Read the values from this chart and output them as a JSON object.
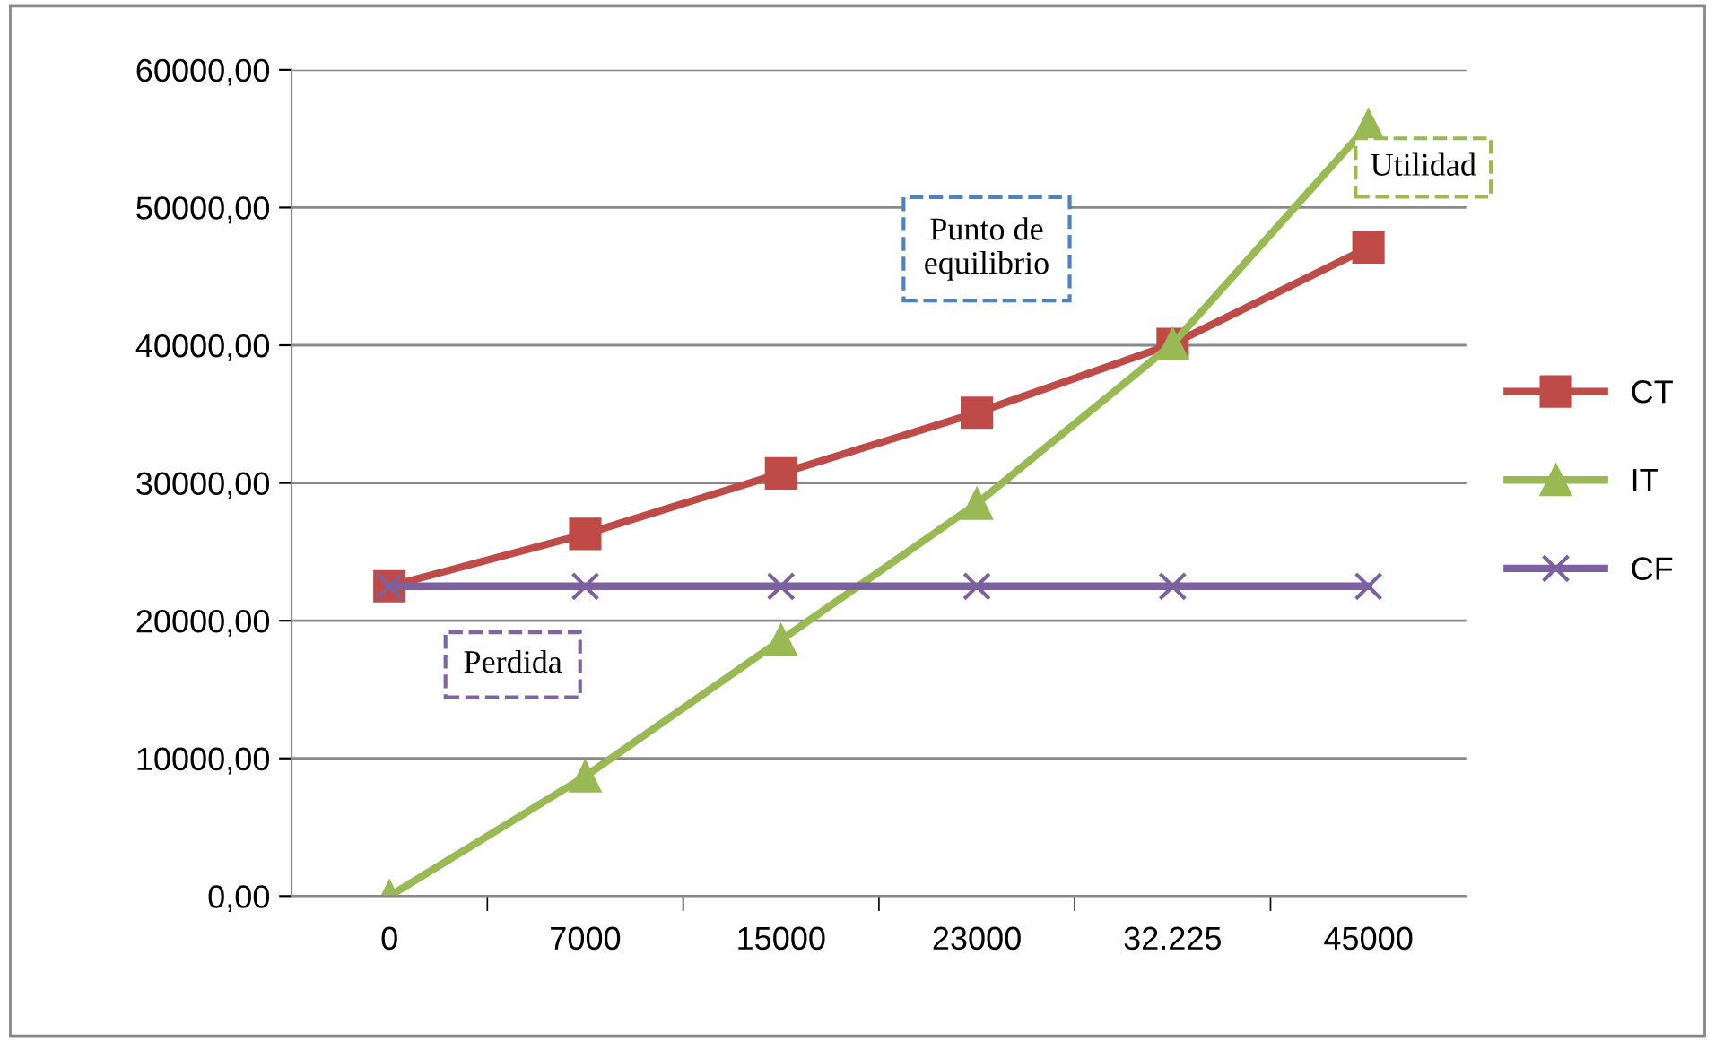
{
  "chart_data": {
    "type": "line",
    "categories": [
      "0",
      "7000",
      "15000",
      "23000",
      "32.225",
      "45000"
    ],
    "series": [
      {
        "name": "CT",
        "color": "#be4b48",
        "marker": "square",
        "values": [
          22500,
          26300,
          30700,
          35100,
          40100,
          47100
        ]
      },
      {
        "name": "IT",
        "color": "#98b954",
        "marker": "triangle",
        "values": [
          0,
          8700,
          18600,
          28500,
          40100,
          56000
        ]
      },
      {
        "name": "CF",
        "color": "#7d60a0",
        "marker": "cross",
        "values": [
          22500,
          22500,
          22500,
          22500,
          22500,
          22500
        ]
      }
    ],
    "ylim": [
      0,
      60000
    ],
    "yticks": [
      {
        "value": 0,
        "label": "0,00"
      },
      {
        "value": 10000,
        "label": "10000,00"
      },
      {
        "value": 20000,
        "label": "20000,00"
      },
      {
        "value": 30000,
        "label": "30000,00"
      },
      {
        "value": 40000,
        "label": "40000,00"
      },
      {
        "value": 50000,
        "label": "50000,00"
      },
      {
        "value": 60000,
        "label": "60000,00"
      }
    ],
    "grid": "y",
    "legend": "right",
    "annotations": [
      "Punto de\nequilibrio",
      "Utilidad",
      "Perdida"
    ]
  }
}
